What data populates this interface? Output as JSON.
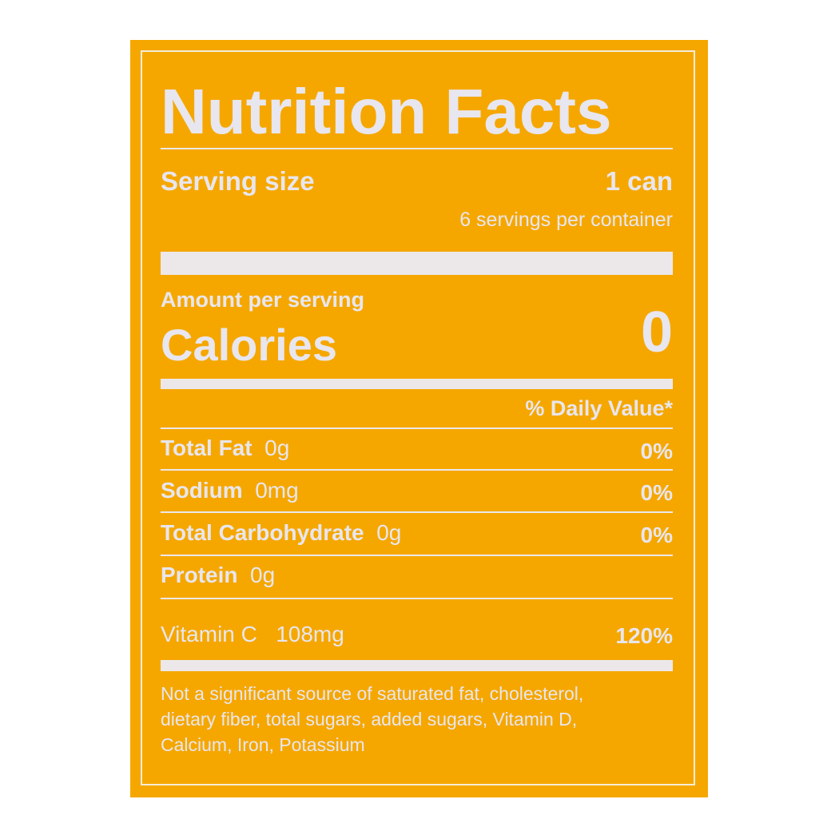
{
  "label": {
    "title": "Nutrition Facts",
    "serving_size_label": "Serving size",
    "serving_size_value": "1 can",
    "servings_per_container": "6 servings per container",
    "amount_per_serving": "Amount per serving",
    "calories_label": "Calories",
    "calories_value": "0",
    "daily_value_header": "% Daily Value*",
    "nutrients": [
      {
        "name": "Total Fat",
        "amount": "0g",
        "dv": "0%"
      },
      {
        "name": "Sodium",
        "amount": "0mg",
        "dv": "0%"
      },
      {
        "name": "Total Carbohydrate",
        "amount": "0g",
        "dv": "0%"
      },
      {
        "name": "Protein",
        "amount": "0g",
        "dv": ""
      }
    ],
    "vitamin": {
      "name": "Vitamin C",
      "amount": "108mg",
      "dv": "120%"
    },
    "footnote_lines": [
      "Not a significant source of saturated fat, cholesterol,",
      "dietary fiber, total sugars, added sugars, Vitamin D,",
      "Calcium, Iron, Potassium"
    ]
  },
  "colors": {
    "background": "#f5a700",
    "text": "#e8e6ee"
  }
}
